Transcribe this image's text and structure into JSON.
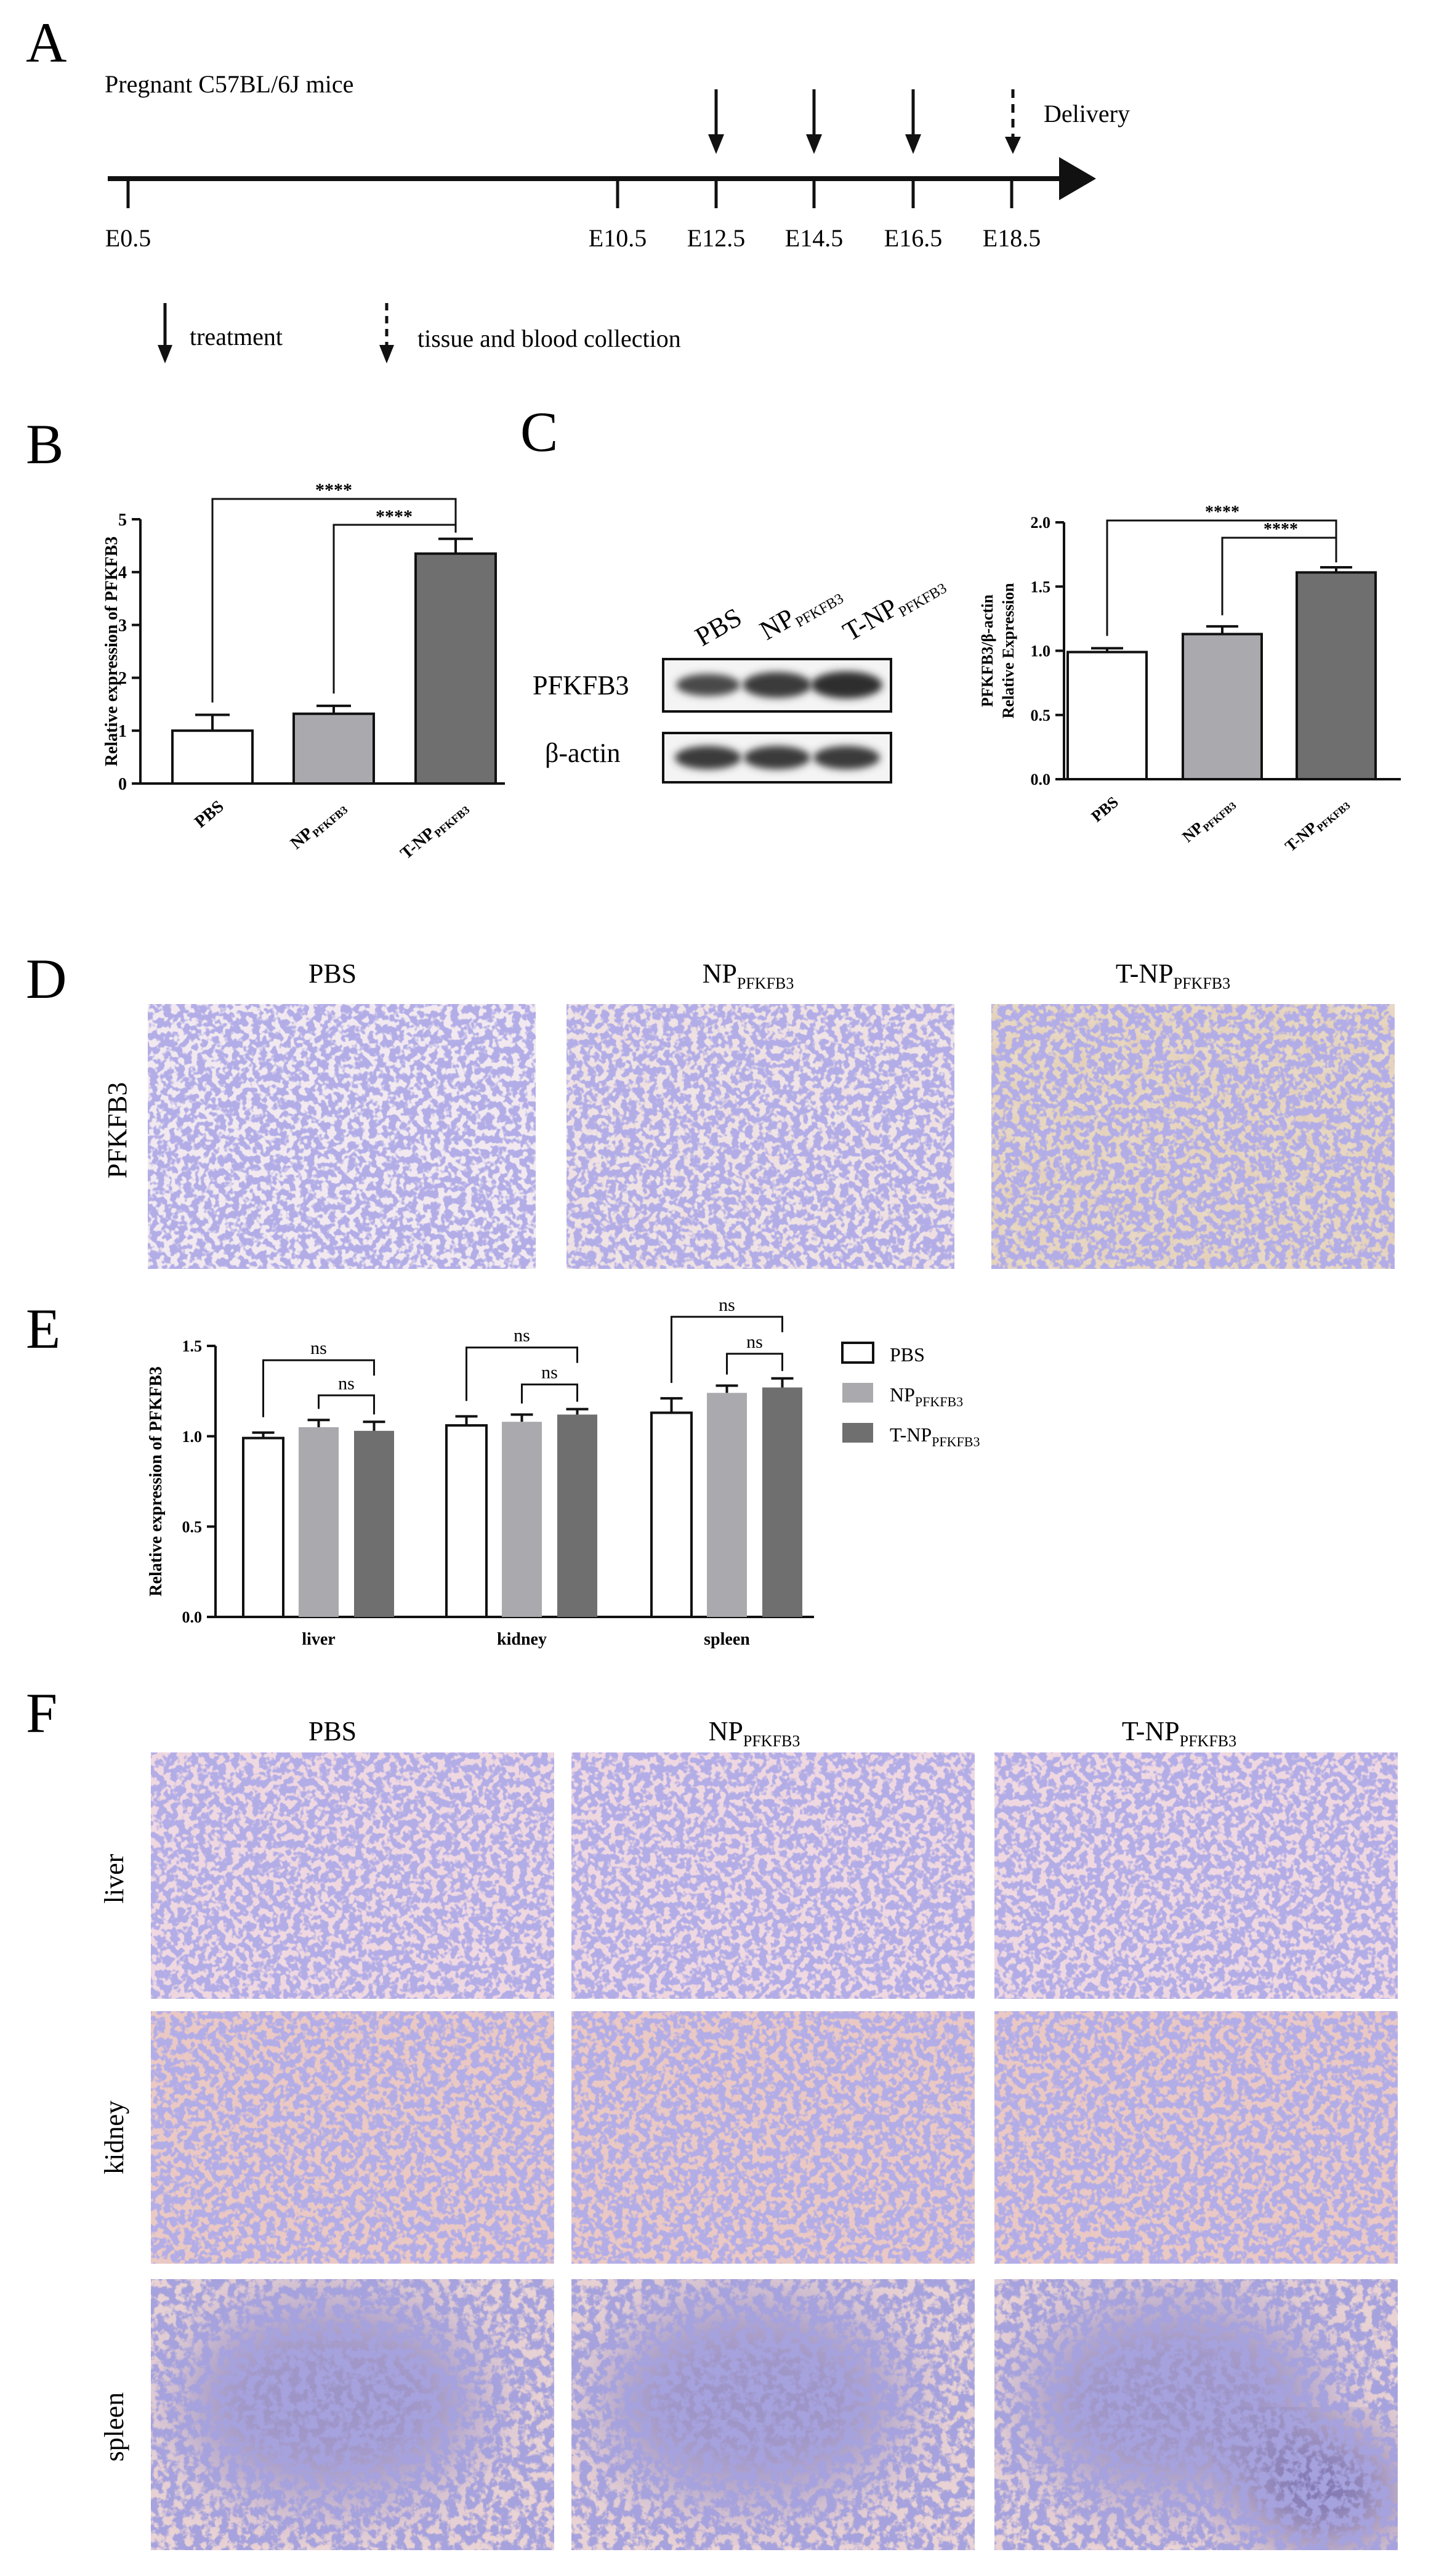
{
  "panelA": {
    "letter": "A",
    "title": "Pregnant C57BL/6J mice",
    "ticks": [
      "E0.5",
      "E10.5",
      "E12.5",
      "E14.5",
      "E16.5",
      "E18.5"
    ],
    "delivery": "Delivery",
    "legend_treatment": "treatment",
    "legend_collection": "tissue and blood collection"
  },
  "panelB": {
    "letter": "B",
    "sig_outer": "****",
    "sig_inner": "****"
  },
  "panelC": {
    "letter": "C",
    "blot_labels": {
      "pbs": "PBS",
      "np": "NP",
      "np_sub": "PFKFB3",
      "tnp": "T-NP",
      "tnp_sub": "PFKFB3"
    },
    "blot_rows": [
      "PFKFB3",
      "β-actin"
    ],
    "sig_outer": "****",
    "sig_inner": "****"
  },
  "panelD": {
    "letter": "D",
    "col_pbs": "PBS",
    "col_np": "NP",
    "col_np_sub": "PFKFB3",
    "col_tnp": "T-NP",
    "col_tnp_sub": "PFKFB3",
    "row": "PFKFB3"
  },
  "panelE": {
    "letter": "E",
    "legend": [
      {
        "name": "PBS",
        "sub": ""
      },
      {
        "name": "NP",
        "sub": "PFKFB3"
      },
      {
        "name": "T-NP",
        "sub": "PFKFB3"
      }
    ],
    "ns": "ns"
  },
  "panelF": {
    "letter": "F",
    "col_pbs": "PBS",
    "col_np": "NP",
    "col_np_sub": "PFKFB3",
    "col_tnp": "T-NP",
    "col_tnp_sub": "PFKFB3",
    "rows": [
      "liver",
      "kidney",
      "spleen"
    ]
  },
  "colors": {
    "pbs": "#ffffff",
    "np": "#a9a9ae",
    "tnp": "#6f6f6f",
    "axis": "#111111"
  },
  "chart_data": [
    {
      "type": "bar",
      "panel": "B",
      "categories": [
        "PBS",
        "NP_PFKFB3",
        "T-NP_PFKFB3"
      ],
      "tick_labels": [
        {
          "main": "PBS",
          "sub": ""
        },
        {
          "main": "NP",
          "sub": "PFKFB3"
        },
        {
          "main": "T-NP",
          "sub": "PFKFB3"
        }
      ],
      "values": [
        1.0,
        1.32,
        4.35
      ],
      "errors": [
        0.3,
        0.15,
        0.28
      ],
      "ylabel": "Relative expression of PFKFB3",
      "ylim": [
        0,
        5
      ],
      "yticks": [
        "0",
        "1",
        "2",
        "3",
        "4",
        "5"
      ]
    },
    {
      "type": "bar",
      "panel": "C",
      "categories": [
        "PBS",
        "NP_PFKFB3",
        "T-NP_PFKFB3"
      ],
      "tick_labels": [
        {
          "main": "PBS",
          "sub": ""
        },
        {
          "main": "NP",
          "sub": "PFKFB3"
        },
        {
          "main": "T-NP",
          "sub": "PFKFB3"
        }
      ],
      "values": [
        0.99,
        1.13,
        1.61
      ],
      "errors": [
        0.03,
        0.06,
        0.04
      ],
      "ylabel": "PFKFB3/β-actin",
      "ylabel2": "Relative Expression",
      "ylim": [
        0,
        2.0
      ],
      "yticks": [
        "0.0",
        "0.5",
        "1.0",
        "1.5",
        "2.0"
      ]
    },
    {
      "type": "bar",
      "panel": "E",
      "categories": [
        "liver",
        "kidney",
        "spleen"
      ],
      "series": [
        {
          "name": "PBS",
          "values": [
            0.99,
            1.06,
            1.13
          ],
          "errors": [
            0.03,
            0.05,
            0.08
          ]
        },
        {
          "name": "NP_PFKFB3",
          "values": [
            1.05,
            1.08,
            1.24
          ],
          "errors": [
            0.04,
            0.04,
            0.04
          ]
        },
        {
          "name": "T-NP_PFKFB3",
          "values": [
            1.03,
            1.12,
            1.27
          ],
          "errors": [
            0.05,
            0.03,
            0.05
          ]
        }
      ],
      "ylabel": "Relative expression of PFKFB3",
      "ylim": [
        0,
        1.5
      ],
      "yticks": [
        "0.0",
        "0.5",
        "1.0",
        "1.5"
      ]
    }
  ]
}
